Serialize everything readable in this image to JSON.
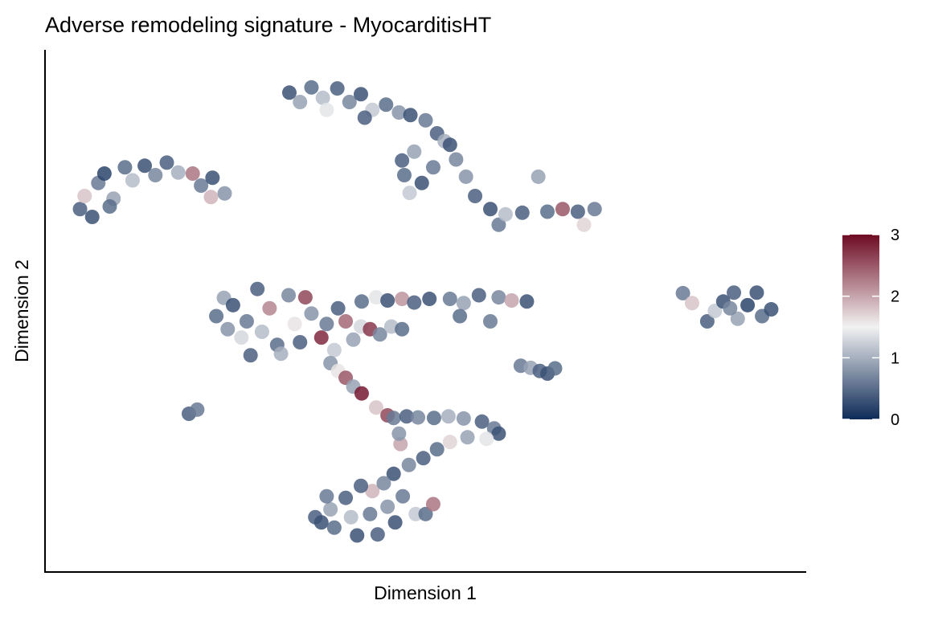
{
  "chart_data": {
    "type": "scatter",
    "title": "Adverse remodeling signature - MyocarditisHT",
    "xlabel": "Dimension 1",
    "ylabel": "Dimension 2",
    "xlim": [
      0,
      100
    ],
    "ylim": [
      0,
      100
    ],
    "grid": false,
    "ticks_shown": false,
    "legend": {
      "placement": "right",
      "type": "colorbar",
      "range": [
        0,
        3
      ],
      "ticks": [
        "0",
        "1",
        "2",
        "3"
      ],
      "colors": [
        "#0d2a57",
        "#f2f2f2",
        "#6e0a22"
      ],
      "midpoint": 1.5
    },
    "points": [
      [
        4.6,
        69.5,
        0.4
      ],
      [
        5.2,
        72,
        1.8
      ],
      [
        6.2,
        68,
        0.3
      ],
      [
        7,
        74.5,
        0.6
      ],
      [
        7.8,
        76.3,
        0.2
      ],
      [
        9,
        71.5,
        0.9
      ],
      [
        10.5,
        77.5,
        0.5
      ],
      [
        11.5,
        75,
        1.1
      ],
      [
        13.1,
        77.8,
        0.3
      ],
      [
        14.5,
        76,
        0.7
      ],
      [
        16,
        78.4,
        0.4
      ],
      [
        17.5,
        76.5,
        1.0
      ],
      [
        19.4,
        76.3,
        2.3
      ],
      [
        20.5,
        74,
        0.6
      ],
      [
        22,
        75.5,
        0.3
      ],
      [
        23.6,
        72.5,
        0.8
      ],
      [
        21.8,
        71.8,
        1.9
      ],
      [
        8.5,
        70,
        0.5
      ],
      [
        32.1,
        91.8,
        0.3
      ],
      [
        33.5,
        90,
        0.9
      ],
      [
        35,
        92.8,
        0.5
      ],
      [
        36.5,
        90.8,
        1.1
      ],
      [
        38.4,
        92.6,
        0.4
      ],
      [
        40,
        90,
        0.7
      ],
      [
        41.5,
        91.5,
        0.3
      ],
      [
        43,
        88.5,
        1.2
      ],
      [
        44.8,
        89.5,
        0.5
      ],
      [
        46.5,
        88,
        0.8
      ],
      [
        48,
        87.5,
        0.3
      ],
      [
        50,
        86.5,
        0.6
      ],
      [
        51.5,
        84,
        0.4
      ],
      [
        52.5,
        82.5,
        1.0
      ],
      [
        53.2,
        81.8,
        0.3
      ],
      [
        54,
        79,
        0.7
      ],
      [
        46.9,
        78.8,
        0.4
      ],
      [
        48.5,
        80.5,
        0.9
      ],
      [
        47.2,
        76,
        0.5
      ],
      [
        47.9,
        72.6,
        1.2
      ],
      [
        49.5,
        74.5,
        0.3
      ],
      [
        51,
        77.5,
        0.6
      ],
      [
        55.3,
        75.7,
        0.8
      ],
      [
        56.5,
        72,
        0.4
      ],
      [
        58.5,
        69.5,
        0.3
      ],
      [
        59.6,
        66.5,
        0.6
      ],
      [
        60.5,
        68.5,
        1.1
      ],
      [
        62.7,
        68.8,
        0.4
      ],
      [
        64.8,
        75.7,
        0.9
      ],
      [
        66,
        69,
        0.5
      ],
      [
        68,
        69.5,
        2.5
      ],
      [
        70,
        69,
        0.4
      ],
      [
        72.2,
        69.5,
        0.6
      ],
      [
        70.8,
        66.5,
        1.7
      ],
      [
        37,
        88.5,
        1.4
      ],
      [
        42,
        87,
        0.4
      ],
      [
        22.5,
        49,
        0.5
      ],
      [
        23.5,
        52.5,
        0.9
      ],
      [
        24.7,
        51.1,
        0.3
      ],
      [
        25.8,
        44.9,
        1.3
      ],
      [
        26.5,
        48,
        0.6
      ],
      [
        27.9,
        54.2,
        0.4
      ],
      [
        28.5,
        46,
        1.1
      ],
      [
        29.5,
        50.5,
        2.2
      ],
      [
        30.5,
        43.5,
        0.5
      ],
      [
        31,
        41.8,
        1.0
      ],
      [
        32,
        53,
        0.7
      ],
      [
        32.8,
        47.5,
        1.6
      ],
      [
        33.5,
        44,
        0.4
      ],
      [
        34.2,
        52.6,
        2.6
      ],
      [
        35,
        49.5,
        0.8
      ],
      [
        36.3,
        44.9,
        2.8
      ],
      [
        37,
        47.5,
        0.6
      ],
      [
        38,
        42.5,
        1.2
      ],
      [
        38.5,
        50.5,
        0.4
      ],
      [
        39.5,
        48,
        2.4
      ],
      [
        40.5,
        44.5,
        0.9
      ],
      [
        41.5,
        47,
        1.3
      ],
      [
        42.7,
        46.5,
        2.7
      ],
      [
        44,
        45.5,
        0.7
      ],
      [
        45.5,
        47,
        1.1
      ],
      [
        46.9,
        46.5,
        0.5
      ],
      [
        27,
        41.5,
        0.4
      ],
      [
        24,
        46.5,
        0.8
      ],
      [
        41.6,
        51.8,
        0.5
      ],
      [
        43.5,
        52.6,
        1.4
      ],
      [
        45,
        52,
        0.3
      ],
      [
        46.9,
        52.3,
        2.1
      ],
      [
        48.5,
        51.6,
        0.4
      ],
      [
        50.5,
        52.3,
        0.3
      ],
      [
        53.2,
        52.3,
        0.6
      ],
      [
        55,
        51.5,
        0.9
      ],
      [
        57,
        53,
        0.4
      ],
      [
        59.6,
        52.6,
        0.7
      ],
      [
        61.3,
        52,
        2.0
      ],
      [
        63.3,
        51.8,
        0.3
      ],
      [
        58.5,
        48,
        0.6
      ],
      [
        54.5,
        49,
        0.5
      ],
      [
        83.8,
        53.4,
        0.6
      ],
      [
        85,
        51.5,
        1.8
      ],
      [
        87,
        48,
        0.4
      ],
      [
        88,
        50,
        1.2
      ],
      [
        89.1,
        51.8,
        0.3
      ],
      [
        90.5,
        53.5,
        0.4
      ],
      [
        91,
        48.5,
        0.9
      ],
      [
        92.3,
        51.1,
        0.2
      ],
      [
        93.5,
        53.5,
        0.3
      ],
      [
        94.2,
        49,
        0.5
      ],
      [
        95.4,
        50.3,
        0.3
      ],
      [
        90,
        50.5,
        0.7
      ],
      [
        62.5,
        39.5,
        0.6
      ],
      [
        63.8,
        39.1,
        0.9
      ],
      [
        65,
        38.5,
        0.4
      ],
      [
        66,
        38,
        0.3
      ],
      [
        67,
        39,
        0.5
      ],
      [
        18.9,
        30.3,
        0.4
      ],
      [
        20,
        31.1,
        0.6
      ],
      [
        37.5,
        40,
        0.8
      ],
      [
        38.5,
        38.5,
        1.6
      ],
      [
        39.5,
        37.2,
        2.5
      ],
      [
        40.5,
        35.5,
        0.9
      ],
      [
        41.6,
        34.2,
        2.9
      ],
      [
        43.5,
        31.5,
        1.8
      ],
      [
        45,
        30,
        2.6
      ],
      [
        45.8,
        29.5,
        0.6
      ],
      [
        47.5,
        29.8,
        0.4
      ],
      [
        49,
        29.6,
        0.7
      ],
      [
        51.1,
        29.5,
        0.5
      ],
      [
        53,
        29.8,
        1.0
      ],
      [
        55,
        29.4,
        0.8
      ],
      [
        57.4,
        28.8,
        0.4
      ],
      [
        59,
        27.5,
        0.6
      ],
      [
        59.6,
        26.5,
        0.3
      ],
      [
        58,
        25.5,
        1.4
      ],
      [
        55.5,
        25.8,
        0.9
      ],
      [
        53.2,
        24.9,
        1.7
      ],
      [
        51.5,
        23.5,
        0.5
      ],
      [
        49.7,
        21.8,
        0.4
      ],
      [
        47.8,
        20.5,
        0.7
      ],
      [
        45.8,
        18.8,
        0.3
      ],
      [
        46.7,
        24.5,
        2.0
      ],
      [
        46.5,
        26.5,
        0.8
      ],
      [
        35.5,
        10.5,
        0.4
      ],
      [
        36.3,
        9.5,
        0.3
      ],
      [
        37.5,
        12,
        0.9
      ],
      [
        38,
        8.5,
        0.5
      ],
      [
        39.5,
        14.2,
        0.4
      ],
      [
        40.2,
        10.5,
        1.1
      ],
      [
        41,
        7,
        0.3
      ],
      [
        42.7,
        11.1,
        0.6
      ],
      [
        43,
        15.5,
        1.9
      ],
      [
        43.7,
        7.2,
        0.4
      ],
      [
        45,
        12.5,
        0.8
      ],
      [
        46,
        9.5,
        0.3
      ],
      [
        47,
        14.5,
        0.6
      ],
      [
        48.7,
        11.1,
        1.2
      ],
      [
        50,
        11.1,
        0.5
      ],
      [
        51,
        13,
        2.3
      ],
      [
        44.5,
        17,
        0.7
      ],
      [
        41.5,
        16.5,
        0.4
      ],
      [
        37,
        14.5,
        0.6
      ]
    ]
  }
}
